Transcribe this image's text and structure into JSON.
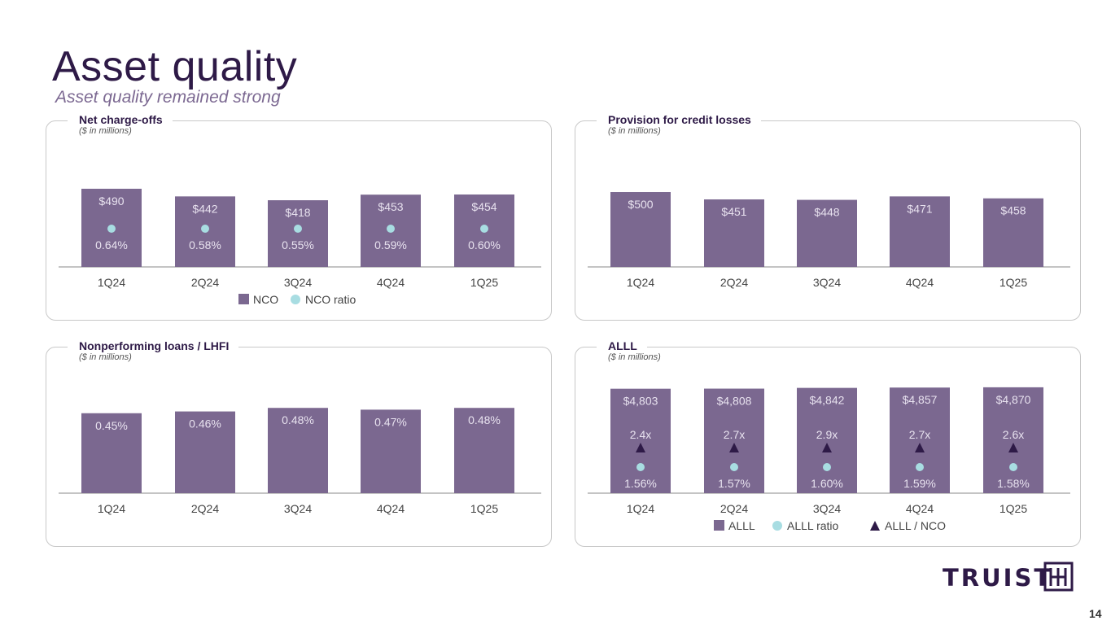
{
  "header": {
    "title": "Asset quality",
    "subtitle": "Asset quality remained strong"
  },
  "colors": {
    "bar": "#7b6890",
    "ratio": "#a8dde2",
    "multiple": "#2e1a47",
    "text_on_bar": "#e8e2ef",
    "axis_text": "#444444"
  },
  "chart_data": [
    {
      "type": "bar",
      "title": "Net charge-offs",
      "subtitle": "($ in millions)",
      "categories": [
        "1Q24",
        "2Q24",
        "3Q24",
        "4Q24",
        "1Q25"
      ],
      "ylim": [
        0,
        913
      ],
      "series": [
        {
          "name": "NCO",
          "values": [
            490,
            442,
            418,
            453,
            454
          ],
          "labels": [
            "$490",
            "$442",
            "$418",
            "$453",
            "$454"
          ]
        },
        {
          "name": "NCO ratio",
          "type": "scatter",
          "values": [
            0.64,
            0.58,
            0.55,
            0.59,
            0.6
          ],
          "labels": [
            "0.64%",
            "0.58%",
            "0.55%",
            "0.59%",
            "0.60%"
          ]
        }
      ],
      "legend": "bottom"
    },
    {
      "type": "bar",
      "title": "Provision for credit losses",
      "subtitle": "($ in millions)",
      "categories": [
        "1Q24",
        "2Q24",
        "3Q24",
        "4Q24",
        "1Q25"
      ],
      "ylim": [
        0,
        973
      ],
      "series": [
        {
          "values": [
            500,
            451,
            448,
            471,
            458
          ],
          "labels": [
            "$500",
            "$451",
            "$448",
            "$471",
            "$458"
          ]
        }
      ]
    },
    {
      "type": "bar",
      "title": "Nonperforming loans / LHFI",
      "subtitle": "($ in millions)",
      "categories": [
        "1Q24",
        "2Q24",
        "3Q24",
        "4Q24",
        "1Q25"
      ],
      "ylim": [
        0,
        0.82
      ],
      "series": [
        {
          "values": [
            0.45,
            0.46,
            0.48,
            0.47,
            0.48
          ],
          "labels": [
            "0.45%",
            "0.46%",
            "0.48%",
            "0.47%",
            "0.48%"
          ]
        }
      ]
    },
    {
      "type": "bar",
      "title": "ALLL",
      "subtitle": "($ in millions)",
      "categories": [
        "1Q24",
        "2Q24",
        "3Q24",
        "4Q24",
        "1Q25"
      ],
      "ylim": [
        0,
        6700
      ],
      "series": [
        {
          "name": "ALLL",
          "values": [
            4803,
            4808,
            4842,
            4857,
            4870
          ],
          "labels": [
            "$4,803",
            "$4,808",
            "$4,842",
            "$4,857",
            "$4,870"
          ]
        },
        {
          "name": "ALLL ratio",
          "type": "scatter",
          "values": [
            1.56,
            1.57,
            1.6,
            1.59,
            1.58
          ],
          "labels": [
            "1.56%",
            "1.57%",
            "1.60%",
            "1.59%",
            "1.58%"
          ]
        },
        {
          "name": "ALLL / NCO",
          "type": "scatter",
          "marker": "triangle",
          "values": [
            2.4,
            2.7,
            2.9,
            2.7,
            2.6
          ],
          "labels": [
            "2.4x",
            "2.7x",
            "2.9x",
            "2.7x",
            "2.6x"
          ]
        }
      ],
      "legend": "bottom"
    }
  ],
  "footer": {
    "logo": "TRUIST",
    "page_number": "14"
  }
}
